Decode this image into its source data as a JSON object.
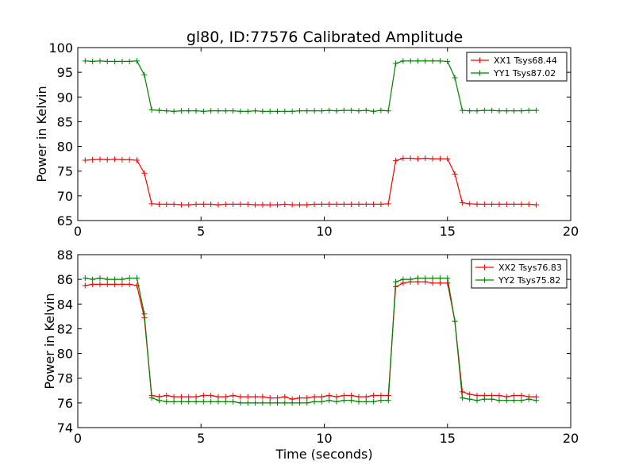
{
  "chart_data": [
    {
      "type": "line",
      "title": "gl80, ID:77576 Calibrated Amplitude",
      "xlabel": "",
      "ylabel": "Power in Kelvin",
      "xlim": [
        0,
        20
      ],
      "ylim": [
        65,
        100
      ],
      "xticks": [
        "0",
        "5",
        "10",
        "15",
        "20"
      ],
      "yticks": [
        "65",
        "70",
        "75",
        "80",
        "85",
        "90",
        "95",
        "100"
      ],
      "legend_position": "top-right",
      "x": [
        0.3,
        0.6,
        0.9,
        1.2,
        1.5,
        1.8,
        2.1,
        2.4,
        2.7,
        3.0,
        3.3,
        3.6,
        3.9,
        4.2,
        4.5,
        4.8,
        5.1,
        5.4,
        5.7,
        6.0,
        6.3,
        6.6,
        6.9,
        7.2,
        7.5,
        7.8,
        8.1,
        8.4,
        8.7,
        9.0,
        9.3,
        9.6,
        9.9,
        10.2,
        10.5,
        10.8,
        11.1,
        11.4,
        11.7,
        12.0,
        12.3,
        12.6,
        12.9,
        13.2,
        13.5,
        13.8,
        14.1,
        14.4,
        14.7,
        15.0,
        15.3,
        15.6,
        15.9,
        16.2,
        16.5,
        16.8,
        17.1,
        17.4,
        17.7,
        18.0,
        18.3,
        18.6
      ],
      "series": [
        {
          "name": "XX1 Tsys68.44",
          "color": "#ff0000",
          "values": [
            77.2,
            77.3,
            77.4,
            77.3,
            77.4,
            77.3,
            77.3,
            77.2,
            74.6,
            68.4,
            68.3,
            68.3,
            68.3,
            68.2,
            68.2,
            68.3,
            68.3,
            68.3,
            68.2,
            68.3,
            68.3,
            68.3,
            68.3,
            68.2,
            68.2,
            68.2,
            68.2,
            68.3,
            68.2,
            68.2,
            68.2,
            68.3,
            68.3,
            68.3,
            68.3,
            68.3,
            68.3,
            68.3,
            68.3,
            68.3,
            68.3,
            68.4,
            77.1,
            77.6,
            77.6,
            77.5,
            77.6,
            77.5,
            77.5,
            77.5,
            74.4,
            68.6,
            68.4,
            68.3,
            68.3,
            68.3,
            68.3,
            68.3,
            68.3,
            68.3,
            68.3,
            68.2
          ]
        },
        {
          "name": "YY1 Tsys87.02",
          "color": "#008000",
          "values": [
            97.3,
            97.2,
            97.3,
            97.2,
            97.2,
            97.2,
            97.2,
            97.3,
            94.5,
            87.4,
            87.3,
            87.2,
            87.1,
            87.2,
            87.2,
            87.2,
            87.1,
            87.2,
            87.2,
            87.2,
            87.2,
            87.1,
            87.1,
            87.2,
            87.1,
            87.1,
            87.1,
            87.1,
            87.1,
            87.2,
            87.2,
            87.2,
            87.2,
            87.3,
            87.2,
            87.3,
            87.3,
            87.2,
            87.3,
            87.1,
            87.3,
            87.2,
            96.8,
            97.3,
            97.3,
            97.3,
            97.3,
            97.3,
            97.3,
            97.2,
            93.9,
            87.3,
            87.2,
            87.2,
            87.3,
            87.3,
            87.2,
            87.2,
            87.2,
            87.2,
            87.3,
            87.3
          ]
        }
      ]
    },
    {
      "type": "line",
      "title": "",
      "xlabel": "Time (seconds)",
      "ylabel": "Power in Kelvin",
      "xlim": [
        0,
        20
      ],
      "ylim": [
        74,
        88
      ],
      "xticks": [
        "0",
        "5",
        "10",
        "15",
        "20"
      ],
      "yticks": [
        "74",
        "76",
        "78",
        "80",
        "82",
        "84",
        "86",
        "88"
      ],
      "legend_position": "top-right",
      "x": [
        0.3,
        0.6,
        0.9,
        1.2,
        1.5,
        1.8,
        2.1,
        2.4,
        2.7,
        3.0,
        3.3,
        3.6,
        3.9,
        4.2,
        4.5,
        4.8,
        5.1,
        5.4,
        5.7,
        6.0,
        6.3,
        6.6,
        6.9,
        7.2,
        7.5,
        7.8,
        8.1,
        8.4,
        8.7,
        9.0,
        9.3,
        9.6,
        9.9,
        10.2,
        10.5,
        10.8,
        11.1,
        11.4,
        11.7,
        12.0,
        12.3,
        12.6,
        12.9,
        13.2,
        13.5,
        13.8,
        14.1,
        14.4,
        14.7,
        15.0,
        15.3,
        15.6,
        15.9,
        16.2,
        16.5,
        16.8,
        17.1,
        17.4,
        17.7,
        18.0,
        18.3,
        18.6
      ],
      "series": [
        {
          "name": "XX2 Tsys76.83",
          "color": "#ff0000",
          "values": [
            85.5,
            85.6,
            85.6,
            85.6,
            85.6,
            85.6,
            85.6,
            85.5,
            82.9,
            76.6,
            76.5,
            76.6,
            76.5,
            76.5,
            76.5,
            76.5,
            76.6,
            76.6,
            76.5,
            76.5,
            76.6,
            76.5,
            76.5,
            76.5,
            76.5,
            76.4,
            76.4,
            76.5,
            76.3,
            76.4,
            76.4,
            76.5,
            76.5,
            76.6,
            76.5,
            76.6,
            76.6,
            76.5,
            76.5,
            76.6,
            76.6,
            76.6,
            85.4,
            85.7,
            85.8,
            85.8,
            85.8,
            85.7,
            85.7,
            85.7,
            82.6,
            76.9,
            76.7,
            76.6,
            76.6,
            76.6,
            76.6,
            76.5,
            76.6,
            76.6,
            76.5,
            76.5
          ]
        },
        {
          "name": "YY2 Tsys75.82",
          "color": "#008000",
          "values": [
            86.1,
            86.0,
            86.1,
            86.0,
            86.0,
            86.0,
            86.1,
            86.1,
            83.2,
            76.4,
            76.2,
            76.1,
            76.1,
            76.1,
            76.1,
            76.1,
            76.1,
            76.1,
            76.1,
            76.1,
            76.1,
            76.0,
            76.0,
            76.0,
            76.0,
            76.0,
            76.0,
            76.0,
            76.0,
            76.0,
            76.0,
            76.1,
            76.1,
            76.2,
            76.1,
            76.2,
            76.2,
            76.1,
            76.1,
            76.1,
            76.2,
            76.2,
            85.8,
            86.0,
            86.0,
            86.1,
            86.1,
            86.1,
            86.1,
            86.1,
            82.6,
            76.4,
            76.3,
            76.2,
            76.3,
            76.3,
            76.2,
            76.2,
            76.2,
            76.2,
            76.3,
            76.2
          ]
        }
      ]
    }
  ]
}
